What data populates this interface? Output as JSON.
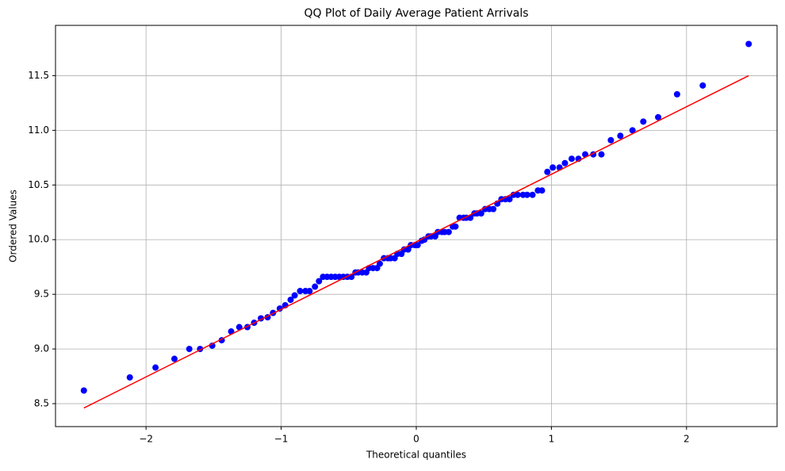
{
  "chart_data": {
    "type": "scatter",
    "title": "QQ Plot of Daily Average Patient Arrivals",
    "xlabel": "Theoretical quantiles",
    "ylabel": "Ordered Values",
    "color": "#0000ff",
    "grid": true,
    "xlim": [
      -2.67,
      2.67
    ],
    "ylim": [
      8.29,
      11.96
    ],
    "xticks": [
      {
        "value": -2,
        "label": "−2"
      },
      {
        "value": -1,
        "label": "−1"
      },
      0,
      1,
      2
    ],
    "yticks": [
      8.5,
      {
        "value": 9,
        "label": "9.0"
      },
      9.5,
      {
        "value": 10,
        "label": "10.0"
      },
      10.5,
      {
        "value": 11,
        "label": "11.0"
      },
      11.5
    ],
    "x": [
      -2.46,
      -2.12,
      -1.93,
      -1.79,
      -1.68,
      -1.6,
      -1.51,
      -1.44,
      -1.37,
      -1.31,
      -1.25,
      -1.2,
      -1.15,
      -1.1,
      -1.06,
      -1.01,
      -0.97,
      -0.93,
      -0.9,
      -0.86,
      -0.82,
      -0.79,
      -0.75,
      -0.72,
      -0.69,
      -0.66,
      -0.63,
      -0.6,
      -0.57,
      -0.54,
      -0.51,
      -0.48,
      -0.45,
      -0.43,
      -0.4,
      -0.37,
      -0.35,
      -0.32,
      -0.29,
      -0.27,
      -0.24,
      -0.21,
      -0.19,
      -0.16,
      -0.14,
      -0.11,
      -0.09,
      -0.06,
      -0.04,
      -0.01,
      0.01,
      0.04,
      0.06,
      0.09,
      0.11,
      0.14,
      0.16,
      0.19,
      0.21,
      0.24,
      0.27,
      0.29,
      0.32,
      0.35,
      0.37,
      0.4,
      0.43,
      0.45,
      0.48,
      0.51,
      0.54,
      0.57,
      0.6,
      0.63,
      0.66,
      0.69,
      0.72,
      0.75,
      0.79,
      0.82,
      0.86,
      0.9,
      0.93,
      0.97,
      1.01,
      1.06,
      1.1,
      1.15,
      1.2,
      1.25,
      1.31,
      1.37,
      1.44,
      1.51,
      1.6,
      1.68,
      1.79,
      1.93,
      2.12,
      2.46
    ],
    "values": [
      8.62,
      8.74,
      8.83,
      8.91,
      9.0,
      9.0,
      9.03,
      9.08,
      9.16,
      9.2,
      9.2,
      9.24,
      9.28,
      9.29,
      9.33,
      9.37,
      9.4,
      9.45,
      9.49,
      9.53,
      9.53,
      9.53,
      9.57,
      9.62,
      9.66,
      9.66,
      9.66,
      9.66,
      9.66,
      9.66,
      9.66,
      9.66,
      9.7,
      9.7,
      9.7,
      9.7,
      9.74,
      9.74,
      9.74,
      9.78,
      9.83,
      9.83,
      9.83,
      9.83,
      9.87,
      9.87,
      9.91,
      9.91,
      9.95,
      9.95,
      9.95,
      9.99,
      10.0,
      10.03,
      10.03,
      10.03,
      10.07,
      10.07,
      10.07,
      10.07,
      10.12,
      10.12,
      10.2,
      10.2,
      10.2,
      10.2,
      10.24,
      10.24,
      10.24,
      10.28,
      10.28,
      10.28,
      10.33,
      10.37,
      10.37,
      10.37,
      10.41,
      10.41,
      10.41,
      10.41,
      10.41,
      10.45,
      10.45,
      10.62,
      10.66,
      10.66,
      10.7,
      10.74,
      10.74,
      10.78,
      10.78,
      10.78,
      10.91,
      10.95,
      11.0,
      11.08,
      11.12,
      11.33,
      11.41,
      11.79
    ],
    "fit_line": {
      "color": "#ff0000",
      "x": [
        -2.46,
        2.46
      ],
      "y": [
        8.46,
        11.5
      ]
    }
  }
}
